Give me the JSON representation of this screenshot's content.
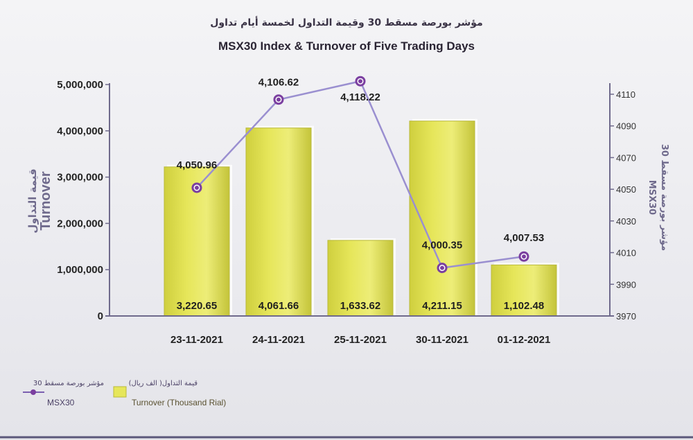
{
  "title_ar": "مؤشر بورصة مسقط 30 وقيمة التداول لخمسة أيام تداول",
  "title_en": "MSX30 Index & Turnover of Five Trading Days",
  "left_axis": {
    "title_ar": "قيمة التداول",
    "title_en": "Turnover",
    "ticks": [
      "0",
      "1,000,000",
      "2,000,000",
      "3,000,000",
      "4,000,000",
      "5,000,000"
    ]
  },
  "right_axis": {
    "title_ar": "مؤشر بورصة مسقط 30",
    "title_en": "MSX30",
    "ticks": [
      "3970",
      "3990",
      "4010",
      "4030",
      "4050",
      "4070",
      "4090",
      "4110"
    ]
  },
  "legend": {
    "line_ar": "مؤشر بورصة مسقط 30",
    "line_en": "MSX30",
    "bar_ar": "قيمة التداول( الف ريال)",
    "bar_en": "Turnover (Thousand Rial)"
  },
  "colors": {
    "bar": "#e6e65a",
    "bar_edge": "#b9b93a",
    "line": "#9a8fd0",
    "marker": "#7b3fa0",
    "axis": "#6f6a8c"
  },
  "chart_data": {
    "type": "bar+line",
    "categories": [
      "23-11-2021",
      "24-11-2021",
      "25-11-2021",
      "30-11-2021",
      "01-12-2021"
    ],
    "series": [
      {
        "name": "Turnover (Thousand Rial)",
        "type": "bar",
        "axis": "left",
        "values": [
          3220650,
          4061660,
          1633620,
          4211150,
          1102480
        ],
        "labels": [
          "3,220.65",
          "4,061.66",
          "1,633.62",
          "4,211.15",
          "1,102.48"
        ]
      },
      {
        "name": "MSX30",
        "type": "line",
        "axis": "right",
        "values": [
          4050.96,
          4106.62,
          4118.22,
          4000.35,
          4007.53
        ],
        "labels": [
          "4,050.96",
          "4,106.62",
          "4,118.22",
          "4,000.35",
          "4,007.53"
        ]
      }
    ],
    "ylim_left": [
      0,
      5000000
    ],
    "ylim_right": [
      3970,
      4120
    ],
    "legend_position": "bottom-left",
    "grid": false
  }
}
